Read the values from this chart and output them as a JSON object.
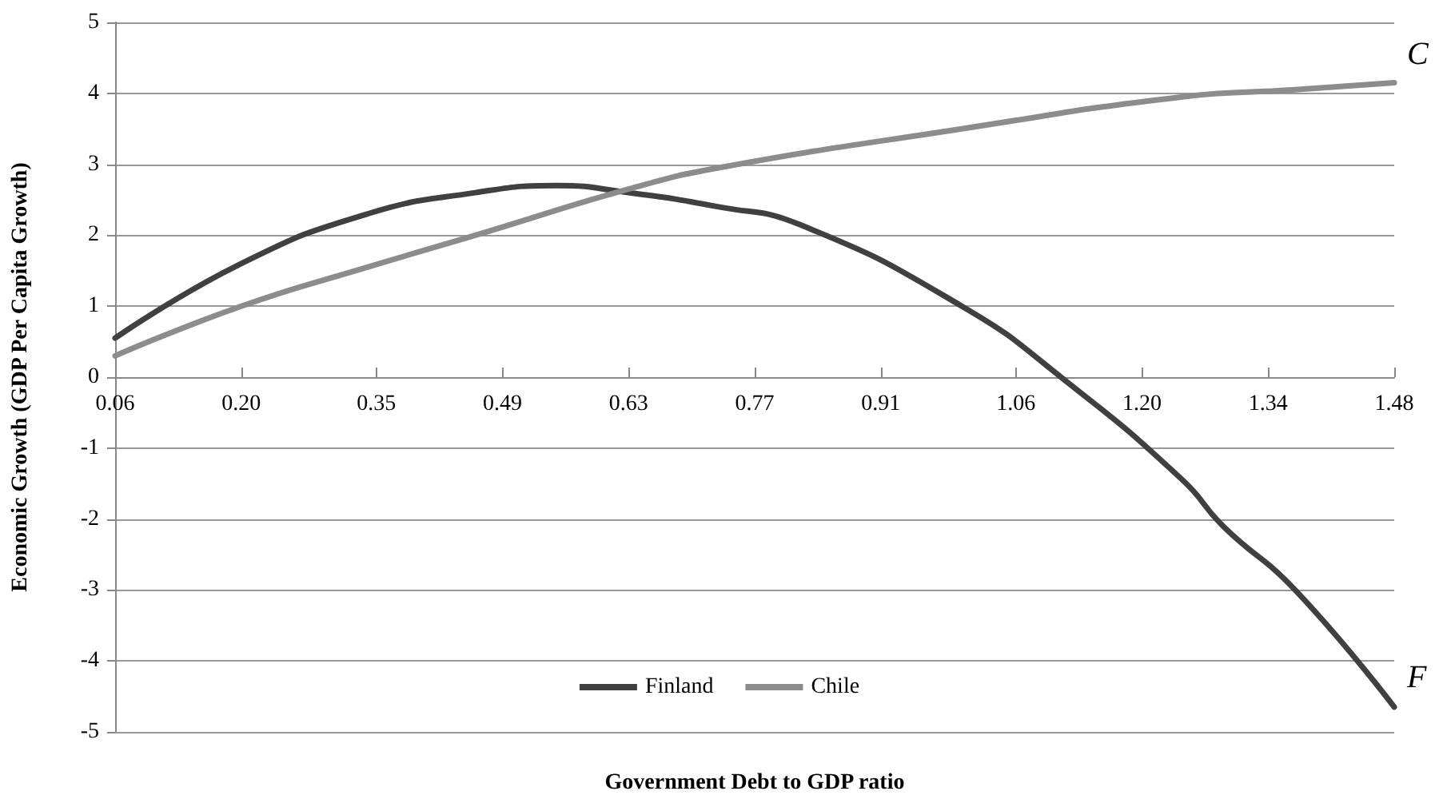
{
  "chart_data": {
    "type": "line",
    "xlabel": "Government Debt to GDP ratio",
    "ylabel": "Economic Growth (GDP Per Capita Growth)",
    "series": [
      {
        "name": "Finland",
        "color": "#404040",
        "x": [
          0.06,
          0.2,
          0.34,
          0.46,
          0.55,
          0.63,
          0.73,
          0.82,
          1.0,
          1.115,
          1.245,
          1.29,
          1.37,
          1.48
        ],
        "values": [
          0.55,
          1.6,
          2.3,
          2.6,
          2.7,
          2.6,
          2.4,
          2.15,
          1.0,
          -0.05,
          -1.45,
          -2.1,
          -3.0,
          -4.65
        ]
      },
      {
        "name": "Chile",
        "color": "#8c8c8c",
        "x": [
          0.06,
          0.2,
          0.34,
          0.46,
          0.63,
          0.73,
          1.0,
          1.245,
          1.37,
          1.48
        ],
        "values": [
          0.3,
          1.0,
          1.55,
          2.0,
          2.65,
          2.95,
          3.5,
          3.95,
          4.05,
          4.15
        ]
      }
    ],
    "xlim": [
      0.06,
      1.48
    ],
    "xticks": [
      0.06,
      {
        "value": 0.2,
        "label": "0.20"
      },
      0.35,
      0.49,
      0.63,
      0.77,
      0.91,
      1.06,
      {
        "value": 1.2,
        "label": "1.20"
      },
      1.34,
      1.48
    ],
    "ylim": [
      -5,
      5
    ],
    "yticks": [
      -5,
      -4,
      -3,
      -2,
      -1,
      0,
      1,
      2,
      3,
      4,
      5
    ],
    "annotations": [
      "C",
      "F"
    ],
    "grid": "y",
    "legend": "bottom",
    "marker": "none",
    "line_style": "solid"
  }
}
